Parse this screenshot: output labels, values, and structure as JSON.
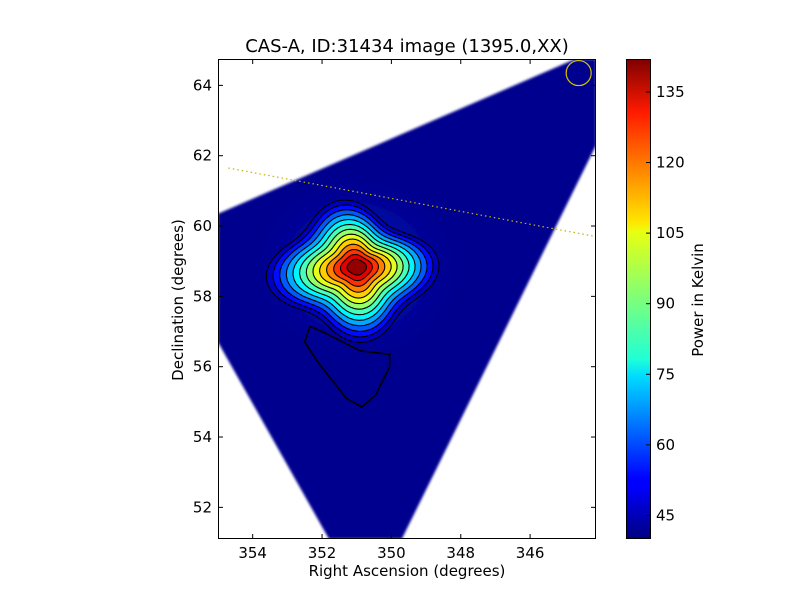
{
  "chart_data": {
    "type": "heatmap",
    "title": "CAS-A, ID:31434 image (1395.0,XX)",
    "xlabel": "Right Ascension (degrees)",
    "ylabel": "Declination (degrees)",
    "xlim": [
      355.0,
      344.1
    ],
    "ylim": [
      51.1,
      64.75
    ],
    "x_ticks": [
      354,
      352,
      350,
      348,
      346
    ],
    "y_ticks": [
      52,
      54,
      56,
      58,
      60,
      62,
      64
    ],
    "x_tick_labels": [
      "354",
      "352",
      "350",
      "348",
      "346"
    ],
    "y_tick_labels": [
      "52",
      "54",
      "56",
      "58",
      "60",
      "62",
      "64"
    ],
    "colormap": "jet",
    "colorbar": {
      "label": "Power in Kelvin",
      "range": [
        40,
        142
      ],
      "ticks": [
        45,
        60,
        75,
        90,
        105,
        120,
        135
      ],
      "tick_labels": [
        "45",
        "60",
        "75",
        "90",
        "105",
        "120",
        "135"
      ]
    },
    "source": {
      "ra": 351.0,
      "dec": 58.8,
      "peak_value": 140
    },
    "contours": {
      "color": "#000000",
      "count": 13
    },
    "overlays": {
      "beam_circle": {
        "ra": 344.6,
        "dec": 64.35,
        "color": "#d4c200"
      },
      "dotted_line": {
        "from": [
          354.7,
          61.65
        ],
        "to": [
          344.1,
          59.7
        ],
        "color": "#c8b400"
      }
    },
    "coverage_polygon": [
      [
        355.0,
        60.35
      ],
      [
        344.7,
        64.75
      ],
      [
        344.1,
        64.75
      ],
      [
        344.1,
        62.3
      ],
      [
        349.7,
        51.1
      ],
      [
        351.8,
        51.1
      ],
      [
        355.0,
        56.7
      ]
    ],
    "grid": false
  }
}
